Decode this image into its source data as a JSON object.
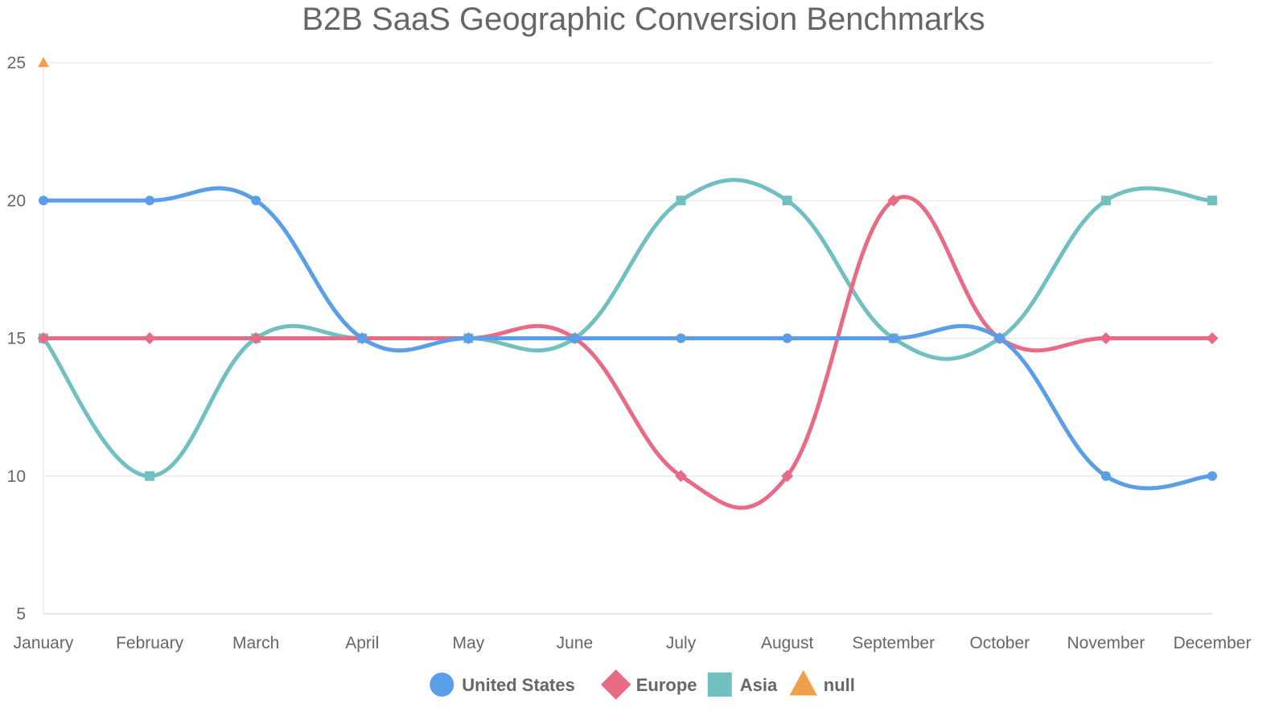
{
  "chart_data": {
    "type": "line",
    "title": "B2B SaaS Geographic Conversion Benchmarks",
    "categories": [
      "January",
      "February",
      "March",
      "April",
      "May",
      "June",
      "July",
      "August",
      "September",
      "October",
      "November",
      "December"
    ],
    "ylim": [
      5,
      25
    ],
    "yticks": [
      5,
      10,
      15,
      20,
      25
    ],
    "grid": true,
    "legend_position": "bottom",
    "series": [
      {
        "name": "United States",
        "color": "#5a9ee8",
        "marker": "circle",
        "values": [
          20,
          20,
          20,
          15,
          15,
          15,
          15,
          15,
          15,
          15,
          10,
          10
        ]
      },
      {
        "name": "Europe",
        "color": "#e96a85",
        "marker": "diamond",
        "values": [
          15,
          15,
          15,
          15,
          15,
          15,
          10,
          10,
          20,
          15,
          15,
          15
        ]
      },
      {
        "name": "Asia",
        "color": "#6fc0bf",
        "marker": "square",
        "values": [
          15,
          10,
          15,
          15,
          15,
          15,
          20,
          20,
          15,
          15,
          20,
          20
        ]
      },
      {
        "name": "null",
        "color": "#f0a04b",
        "marker": "triangle",
        "values": [
          25,
          null,
          null,
          null,
          null,
          null,
          null,
          null,
          null,
          null,
          null,
          null
        ]
      }
    ]
  }
}
